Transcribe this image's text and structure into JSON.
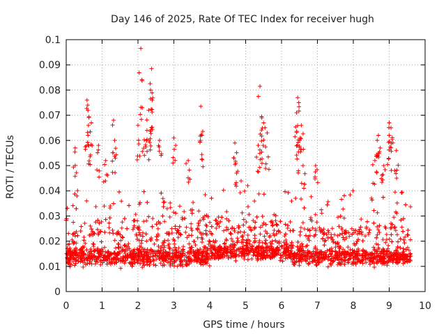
{
  "chart_data": {
    "type": "scatter",
    "title": "Day 146 of 2025, Rate Of TEC Index for receiver hugh",
    "xlabel": "GPS time / hours",
    "ylabel": "ROTI / TECUs",
    "xlim": [
      0,
      10
    ],
    "ylim": [
      0,
      0.1
    ],
    "xticks": [
      "0",
      "1",
      "2",
      "3",
      "4",
      "5",
      "6",
      "7",
      "8",
      "9",
      "10"
    ],
    "yticks": [
      "0",
      "0.01",
      "0.02",
      "0.03",
      "0.04",
      "0.05",
      "0.06",
      "0.07",
      "0.08",
      "0.09",
      "0.1"
    ],
    "grid": true,
    "marker": "+",
    "color": "#ff0000",
    "x_data_range": [
      0,
      9.6
    ],
    "series": [
      {
        "name": "ROTI",
        "note": "dense band mostly 0.005-0.035 TECU/s across 0-9.6 h; notable peaks listed below",
        "peaks": [
          {
            "x": 0.58,
            "y": 0.076
          },
          {
            "x": 0.6,
            "y": 0.074
          },
          {
            "x": 0.62,
            "y": 0.066
          },
          {
            "x": 0.7,
            "y": 0.067
          },
          {
            "x": 0.25,
            "y": 0.057
          },
          {
            "x": 0.9,
            "y": 0.058
          },
          {
            "x": 1.32,
            "y": 0.068
          },
          {
            "x": 1.35,
            "y": 0.06
          },
          {
            "x": 1.1,
            "y": 0.052
          },
          {
            "x": 2.08,
            "y": 0.0965
          },
          {
            "x": 2.38,
            "y": 0.0885
          },
          {
            "x": 2.35,
            "y": 0.08
          },
          {
            "x": 2.4,
            "y": 0.076
          },
          {
            "x": 2.12,
            "y": 0.073
          },
          {
            "x": 2.3,
            "y": 0.072
          },
          {
            "x": 2.0,
            "y": 0.066
          },
          {
            "x": 2.25,
            "y": 0.064
          },
          {
            "x": 2.6,
            "y": 0.06
          },
          {
            "x": 3.0,
            "y": 0.061
          },
          {
            "x": 3.75,
            "y": 0.0735
          },
          {
            "x": 3.78,
            "y": 0.062
          },
          {
            "x": 3.4,
            "y": 0.052
          },
          {
            "x": 4.7,
            "y": 0.059
          },
          {
            "x": 4.72,
            "y": 0.051
          },
          {
            "x": 5.4,
            "y": 0.0815
          },
          {
            "x": 5.45,
            "y": 0.069
          },
          {
            "x": 5.5,
            "y": 0.067
          },
          {
            "x": 5.6,
            "y": 0.063
          },
          {
            "x": 5.35,
            "y": 0.058
          },
          {
            "x": 6.45,
            "y": 0.077
          },
          {
            "x": 6.48,
            "y": 0.075
          },
          {
            "x": 6.42,
            "y": 0.071
          },
          {
            "x": 6.55,
            "y": 0.066
          },
          {
            "x": 6.52,
            "y": 0.061
          },
          {
            "x": 6.6,
            "y": 0.05
          },
          {
            "x": 6.95,
            "y": 0.05
          },
          {
            "x": 8.7,
            "y": 0.062
          },
          {
            "x": 8.75,
            "y": 0.057
          },
          {
            "x": 9.0,
            "y": 0.067
          },
          {
            "x": 9.05,
            "y": 0.065
          },
          {
            "x": 9.0,
            "y": 0.062
          },
          {
            "x": 9.2,
            "y": 0.056
          },
          {
            "x": 8.6,
            "y": 0.052
          },
          {
            "x": 8.85,
            "y": 0.05
          }
        ]
      }
    ]
  }
}
